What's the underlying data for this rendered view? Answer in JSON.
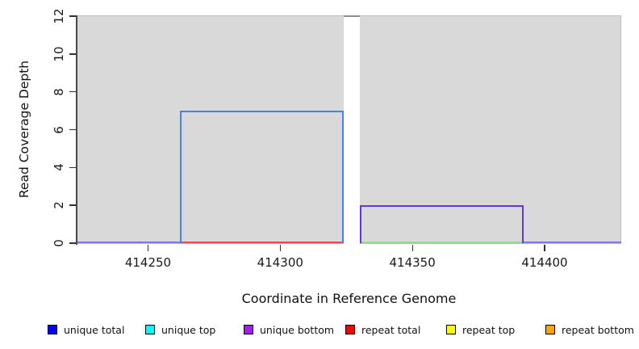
{
  "chart_data": {
    "type": "area",
    "title": "",
    "xlabel": "Coordinate in Reference Genome",
    "ylabel": "Read Coverage Depth",
    "xlim": [
      414223,
      414429
    ],
    "ylim": [
      0,
      12
    ],
    "x_ticks": [
      414250,
      414300,
      414350,
      414400
    ],
    "y_ticks": [
      0,
      2,
      4,
      6,
      8,
      10,
      12
    ],
    "grid": "off",
    "panel_bg": "#d9d9d9",
    "panel_border": "#bdbdbd",
    "coverage_boxes": [
      {
        "name": "unique total",
        "start": 414262,
        "end": 414324,
        "depth": 7,
        "stroke": "#4480f7"
      },
      {
        "name": "unique bottom",
        "start": 414330,
        "end": 414392,
        "depth": 2,
        "stroke": "#6236e8"
      }
    ],
    "baseline_segments": [
      {
        "name": "zero-line-left",
        "start": 414223,
        "end": 414262,
        "colors": [
          "#4f7cf3",
          "#9b7bf0"
        ]
      },
      {
        "name": "repeat-total-zero",
        "start": 414262,
        "end": 414324,
        "colors": [
          "#ef4458"
        ]
      },
      {
        "name": "zero-line-mid",
        "start": 414330,
        "end": 414392,
        "colors": [
          "#92d992"
        ]
      },
      {
        "name": "zero-line-right",
        "start": 414392,
        "end": 414429,
        "colors": [
          "#4f7cf3",
          "#9b7bf0"
        ]
      }
    ],
    "gap_region": {
      "start": 414324,
      "end": 414330,
      "fill": "#ffffff",
      "cap_color": "#8c8c8c"
    },
    "legend": [
      {
        "label": "unique total",
        "color": "#0000ff"
      },
      {
        "label": "unique top",
        "color": "#00ffff"
      },
      {
        "label": "unique bottom",
        "color": "#a020f0"
      },
      {
        "label": "repeat total",
        "color": "#ff0000"
      },
      {
        "label": "repeat top",
        "color": "#ffff00"
      },
      {
        "label": "repeat bottom",
        "color": "#ffa500"
      }
    ]
  }
}
